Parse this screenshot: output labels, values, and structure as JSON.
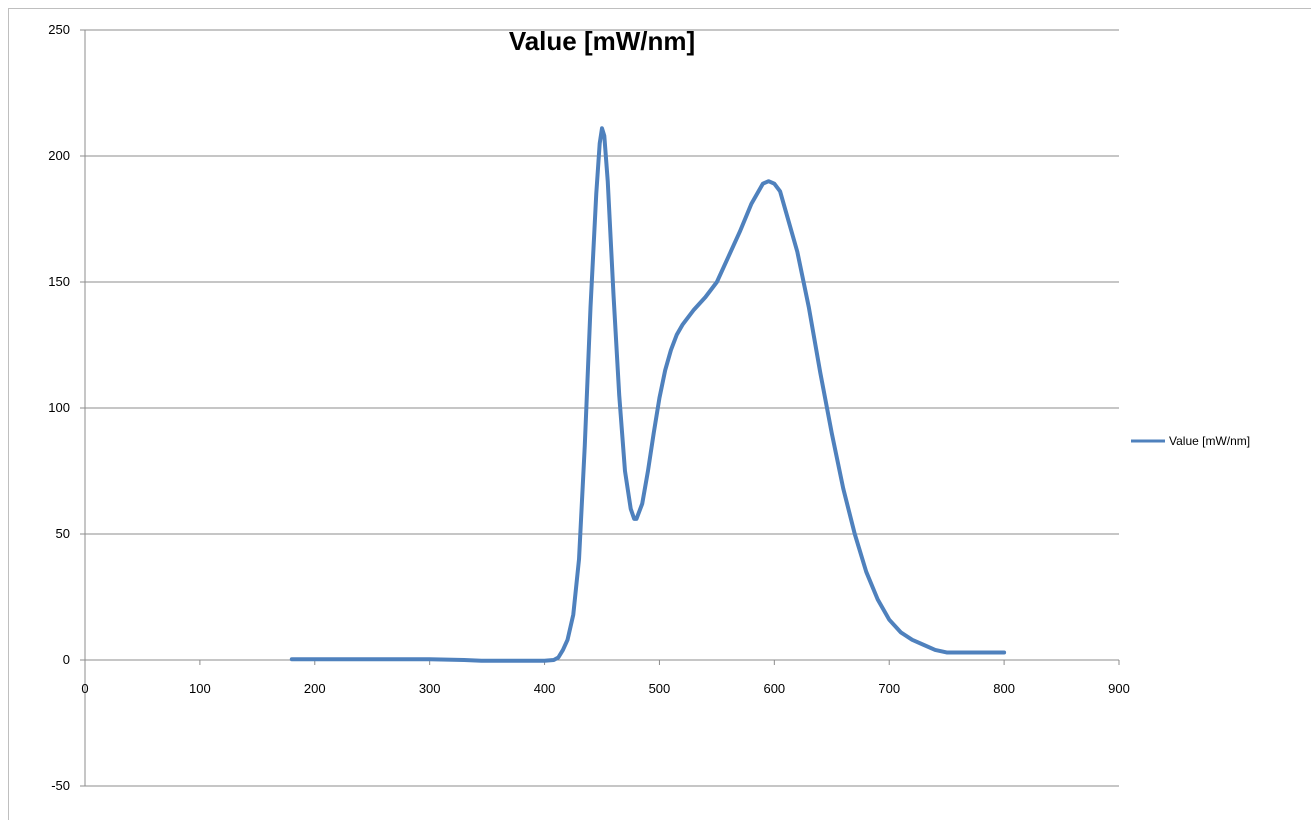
{
  "chart_data": {
    "type": "line",
    "title": "Value [mW/nm]",
    "xlabel": "",
    "ylabel": "",
    "xlim": [
      0,
      900
    ],
    "ylim": [
      -50,
      250
    ],
    "x_ticks": [
      "0",
      "100",
      "200",
      "300",
      "400",
      "500",
      "600",
      "700",
      "800",
      "900"
    ],
    "y_ticks": [
      "250",
      "200",
      "150",
      "100",
      "50",
      "0",
      "-50"
    ],
    "grid": "horizontal",
    "legend_position": "right",
    "series": [
      {
        "name": "Value [mW/nm]",
        "color": "#4F81BD",
        "points": [
          [
            180,
            0.3
          ],
          [
            250,
            0.3
          ],
          [
            300,
            0.3
          ],
          [
            330,
            0
          ],
          [
            345,
            -0.3
          ],
          [
            400,
            -0.3
          ],
          [
            408,
            0
          ],
          [
            412,
            1
          ],
          [
            416,
            4
          ],
          [
            420,
            8
          ],
          [
            425,
            18
          ],
          [
            430,
            40
          ],
          [
            435,
            85
          ],
          [
            440,
            140
          ],
          [
            445,
            185
          ],
          [
            448,
            205
          ],
          [
            450,
            211
          ],
          [
            452,
            208
          ],
          [
            455,
            190
          ],
          [
            460,
            145
          ],
          [
            465,
            105
          ],
          [
            470,
            75
          ],
          [
            475,
            60
          ],
          [
            478,
            56
          ],
          [
            480,
            56
          ],
          [
            485,
            62
          ],
          [
            490,
            75
          ],
          [
            495,
            90
          ],
          [
            500,
            104
          ],
          [
            505,
            115
          ],
          [
            510,
            123
          ],
          [
            515,
            129
          ],
          [
            520,
            133
          ],
          [
            530,
            139
          ],
          [
            540,
            144
          ],
          [
            550,
            150
          ],
          [
            560,
            160
          ],
          [
            570,
            170
          ],
          [
            580,
            181
          ],
          [
            590,
            189
          ],
          [
            595,
            190
          ],
          [
            600,
            189
          ],
          [
            605,
            186
          ],
          [
            610,
            178
          ],
          [
            620,
            162
          ],
          [
            630,
            140
          ],
          [
            640,
            114
          ],
          [
            650,
            90
          ],
          [
            660,
            68
          ],
          [
            670,
            50
          ],
          [
            680,
            35
          ],
          [
            690,
            24
          ],
          [
            700,
            16
          ],
          [
            710,
            11
          ],
          [
            720,
            8
          ],
          [
            730,
            6
          ],
          [
            740,
            4
          ],
          [
            750,
            3
          ],
          [
            760,
            3
          ],
          [
            780,
            3
          ],
          [
            800,
            3
          ]
        ]
      }
    ]
  }
}
